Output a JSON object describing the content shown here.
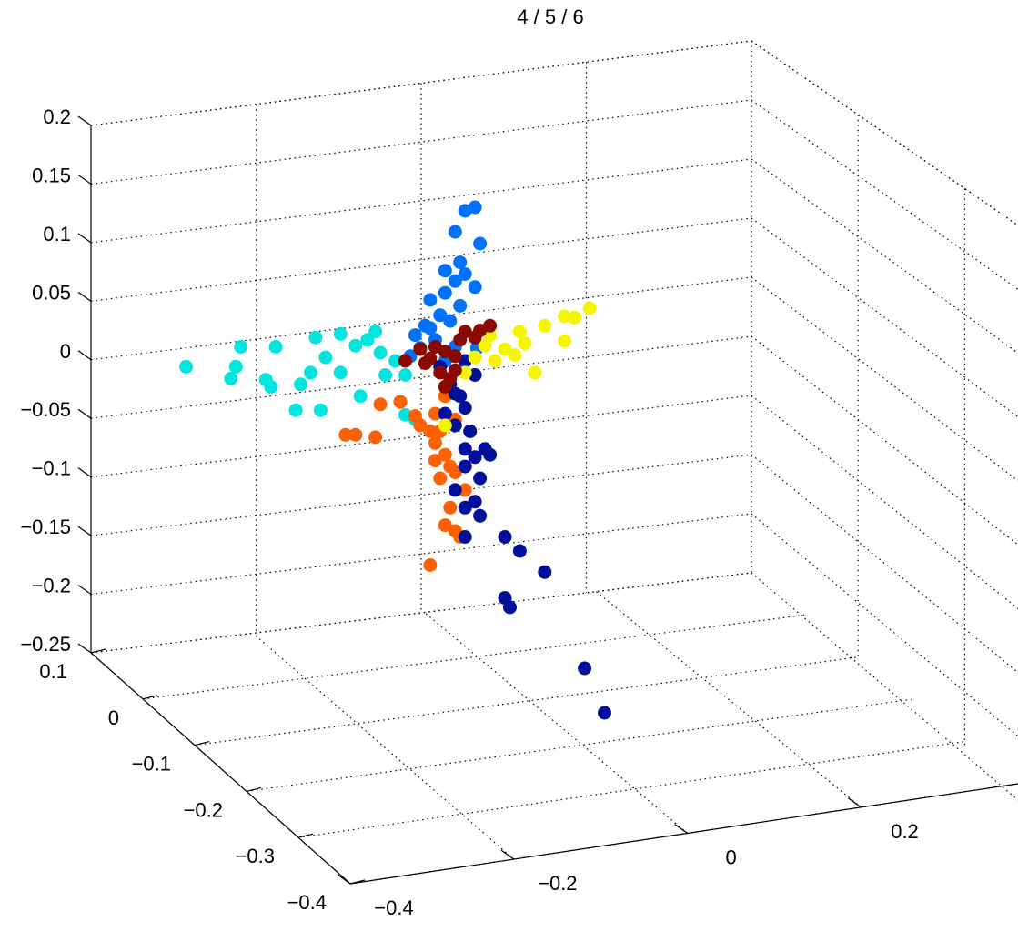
{
  "chart_data": {
    "type": "scatter",
    "projection": "3d",
    "title": "4 / 5 / 6",
    "xlabel": "",
    "ylabel": "",
    "zlabel": "",
    "grid": true,
    "marker_style": "filled circle",
    "z_ticks": [
      "0.2",
      "0.15",
      "0.1",
      "0.05",
      "0",
      "−0.05",
      "−0.1",
      "−0.15",
      "−0.2",
      "−0.25"
    ],
    "y_ticks": [
      "0.1",
      "0",
      "−0.1",
      "−0.2",
      "−0.3",
      "−0.4"
    ],
    "x_ticks": [
      "−0.4",
      "−0.2",
      "0",
      "0.2"
    ],
    "series": [
      {
        "color": "#0070ff",
        "points": [
          [
            -0.028,
            -0.03,
            0.011
          ],
          [
            -0.04,
            -0.03,
            0.128
          ],
          [
            -0.03,
            -0.03,
            0.131
          ],
          [
            -0.05,
            -0.03,
            0.11
          ],
          [
            -0.025,
            -0.03,
            0.1
          ],
          [
            -0.045,
            -0.03,
            0.084
          ],
          [
            -0.06,
            -0.03,
            0.077
          ],
          [
            -0.04,
            -0.03,
            0.074
          ],
          [
            -0.05,
            -0.03,
            0.068
          ],
          [
            -0.03,
            -0.03,
            0.063
          ],
          [
            -0.06,
            -0.03,
            0.058
          ],
          [
            -0.075,
            -0.03,
            0.052
          ],
          [
            -0.045,
            -0.03,
            0.047
          ],
          [
            -0.065,
            -0.03,
            0.039
          ],
          [
            -0.08,
            -0.03,
            0.03
          ],
          [
            -0.055,
            -0.03,
            0.034
          ],
          [
            -0.09,
            -0.03,
            0.022
          ],
          [
            -0.07,
            -0.03,
            0.018
          ],
          [
            -0.085,
            -0.03,
            0.011
          ],
          [
            -0.05,
            -0.03,
            0.012
          ],
          [
            -0.095,
            -0.03,
            0.004
          ],
          [
            -0.06,
            -0.03,
            0.0
          ],
          [
            -0.075,
            -0.03,
            0.028
          ]
        ]
      },
      {
        "color": "#00e5e0",
        "points": [
          [
            -0.32,
            -0.03,
            -0.005
          ],
          [
            -0.265,
            -0.03,
            0.012
          ],
          [
            -0.27,
            -0.03,
            -0.005
          ],
          [
            -0.275,
            -0.03,
            -0.015
          ],
          [
            -0.24,
            -0.03,
            -0.016
          ],
          [
            -0.235,
            -0.03,
            -0.022
          ],
          [
            -0.23,
            -0.03,
            0.012
          ],
          [
            -0.205,
            -0.03,
            -0.02
          ],
          [
            -0.21,
            -0.03,
            -0.042
          ],
          [
            -0.185,
            -0.03,
            -0.042
          ],
          [
            -0.195,
            -0.03,
            -0.01
          ],
          [
            -0.19,
            -0.03,
            0.02
          ],
          [
            -0.18,
            -0.03,
            0.003
          ],
          [
            -0.165,
            -0.03,
            -0.01
          ],
          [
            -0.165,
            -0.03,
            0.023
          ],
          [
            -0.15,
            -0.03,
            0.013
          ],
          [
            -0.145,
            -0.03,
            -0.03
          ],
          [
            -0.138,
            -0.03,
            0.018
          ],
          [
            -0.125,
            -0.03,
            0.007
          ],
          [
            -0.13,
            -0.03,
            0.025
          ],
          [
            -0.12,
            -0.03,
            -0.012
          ],
          [
            -0.11,
            -0.03,
            0.0
          ],
          [
            -0.1,
            -0.03,
            -0.046
          ],
          [
            -0.09,
            -0.03,
            -0.05
          ],
          [
            -0.105,
            -0.03,
            -0.035
          ],
          [
            -0.1,
            -0.03,
            -0.012
          ]
        ]
      },
      {
        "color": "#ff6000",
        "points": [
          [
            -0.16,
            -0.03,
            -0.063
          ],
          [
            -0.15,
            -0.03,
            -0.063
          ],
          [
            -0.13,
            -0.03,
            -0.065
          ],
          [
            -0.125,
            -0.03,
            -0.037
          ],
          [
            -0.105,
            -0.03,
            -0.035
          ],
          [
            -0.09,
            -0.03,
            -0.047
          ],
          [
            -0.07,
            -0.03,
            -0.045
          ],
          [
            -0.085,
            -0.03,
            -0.055
          ],
          [
            -0.075,
            -0.03,
            -0.06
          ],
          [
            -0.065,
            -0.03,
            -0.06
          ],
          [
            -0.07,
            -0.03,
            -0.07
          ],
          [
            -0.06,
            -0.03,
            -0.08
          ],
          [
            -0.07,
            -0.03,
            -0.085
          ],
          [
            -0.055,
            -0.03,
            -0.09
          ],
          [
            -0.05,
            -0.03,
            -0.095
          ],
          [
            -0.065,
            -0.03,
            -0.1
          ],
          [
            -0.04,
            -0.03,
            -0.11
          ],
          [
            -0.055,
            -0.03,
            -0.125
          ],
          [
            -0.06,
            -0.03,
            -0.14
          ],
          [
            -0.05,
            -0.03,
            -0.145
          ],
          [
            -0.045,
            -0.03,
            -0.15
          ],
          [
            -0.075,
            -0.03,
            -0.174
          ],
          [
            -0.05,
            -0.03,
            -0.05
          ],
          [
            -0.06,
            -0.03,
            -0.03
          ]
        ]
      },
      {
        "color": "#00109a",
        "points": [
          [
            -0.065,
            -0.03,
            -0.005
          ],
          [
            -0.055,
            -0.03,
            -0.02
          ],
          [
            -0.045,
            -0.03,
            -0.03
          ],
          [
            -0.04,
            -0.03,
            -0.04
          ],
          [
            -0.06,
            -0.03,
            -0.045
          ],
          [
            -0.05,
            -0.03,
            -0.055
          ],
          [
            -0.035,
            -0.03,
            -0.06
          ],
          [
            -0.04,
            -0.03,
            -0.075
          ],
          [
            -0.03,
            -0.03,
            -0.082
          ],
          [
            -0.02,
            -0.03,
            -0.075
          ],
          [
            -0.015,
            -0.03,
            -0.08
          ],
          [
            -0.04,
            -0.03,
            -0.09
          ],
          [
            -0.025,
            -0.03,
            -0.1
          ],
          [
            -0.05,
            -0.03,
            -0.11
          ],
          [
            -0.03,
            -0.03,
            -0.12
          ],
          [
            -0.04,
            -0.03,
            -0.125
          ],
          [
            -0.025,
            -0.03,
            -0.132
          ],
          [
            -0.04,
            -0.03,
            -0.15
          ],
          [
            0.0,
            -0.03,
            -0.15
          ],
          [
            0.015,
            -0.03,
            -0.162
          ],
          [
            0.04,
            -0.03,
            -0.18
          ],
          [
            0.0,
            -0.03,
            -0.202
          ],
          [
            0.005,
            -0.03,
            -0.21
          ],
          [
            0.08,
            -0.03,
            -0.262
          ],
          [
            0.1,
            -0.03,
            -0.3
          ],
          [
            -0.04,
            -0.03,
            0.0
          ],
          [
            -0.03,
            -0.03,
            -0.012
          ],
          [
            -0.05,
            -0.03,
            -0.028
          ]
        ]
      },
      {
        "color": "#f5f500",
        "points": [
          [
            -0.02,
            -0.03,
            0.013
          ],
          [
            0.0,
            -0.03,
            0.01
          ],
          [
            0.02,
            -0.03,
            0.015
          ],
          [
            0.01,
            -0.03,
            0.005
          ],
          [
            0.03,
            -0.03,
            -0.01
          ],
          [
            0.04,
            -0.03,
            0.03
          ],
          [
            0.06,
            -0.03,
            0.038
          ],
          [
            0.07,
            -0.03,
            0.037
          ],
          [
            0.085,
            -0.03,
            0.045
          ],
          [
            0.06,
            -0.03,
            0.017
          ],
          [
            -0.01,
            -0.03,
            0.0
          ],
          [
            -0.03,
            -0.03,
            0.003
          ],
          [
            -0.04,
            -0.03,
            -0.01
          ],
          [
            -0.06,
            -0.03,
            -0.055
          ],
          [
            0.015,
            -0.03,
            0.025
          ],
          [
            -0.015,
            -0.03,
            0.022
          ]
        ]
      },
      {
        "color": "#8a0a00",
        "points": [
          [
            -0.07,
            -0.03,
            0.012
          ],
          [
            -0.06,
            -0.03,
            0.008
          ],
          [
            -0.05,
            -0.03,
            0.004
          ],
          [
            -0.08,
            -0.03,
            -0.002
          ],
          [
            -0.065,
            -0.03,
            -0.01
          ],
          [
            -0.055,
            -0.03,
            -0.015
          ],
          [
            -0.075,
            -0.03,
            0.002
          ],
          [
            -0.045,
            -0.03,
            0.018
          ],
          [
            -0.04,
            -0.03,
            0.025
          ],
          [
            -0.03,
            -0.03,
            0.02
          ],
          [
            -0.025,
            -0.03,
            0.026
          ],
          [
            -0.015,
            -0.03,
            0.03
          ],
          [
            -0.06,
            -0.03,
            -0.022
          ],
          [
            -0.05,
            -0.03,
            -0.008
          ],
          [
            -0.085,
            -0.03,
            0.01
          ],
          [
            -0.1,
            -0.03,
            0.0
          ]
        ]
      }
    ]
  }
}
